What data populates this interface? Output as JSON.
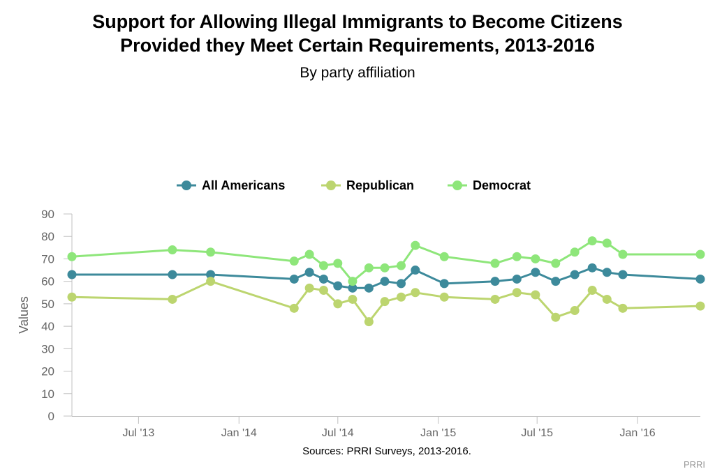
{
  "title_line1": "Support for Allowing Illegal Immigrants to Become Citizens",
  "title_line2": "Provided they Meet Certain Requirements, 2013-2016",
  "subtitle": "By party affiliation",
  "source": "Sources: PRRI Surveys, 2013-2016.",
  "credit": "PRRI",
  "colors": {
    "all_americans": "#3d8a9b",
    "republican": "#bcd56f",
    "democrat": "#8ee67a",
    "axis": "#c0c0c0",
    "tick_text": "#666666"
  },
  "chart_data": {
    "type": "line",
    "title": "Support for Allowing Illegal Immigrants to Become Citizens Provided they Meet Certain Requirements, 2013-2016",
    "subtitle": "By party affiliation",
    "xlabel": "",
    "ylabel": "Values",
    "ylim": [
      0,
      90
    ],
    "yticks": [
      0,
      10,
      20,
      30,
      40,
      50,
      60,
      70,
      80,
      90
    ],
    "xlim": [
      "2013-03-01",
      "2016-04-25"
    ],
    "xticks": [
      {
        "date": "2013-07-01",
        "label": "Jul '13"
      },
      {
        "date": "2014-01-01",
        "label": "Jan '14"
      },
      {
        "date": "2014-07-01",
        "label": "Jul '14"
      },
      {
        "date": "2015-01-01",
        "label": "Jan '15"
      },
      {
        "date": "2015-07-01",
        "label": "Jul '15"
      },
      {
        "date": "2016-01-01",
        "label": "Jan '16"
      }
    ],
    "legend_position": "top-center",
    "grid": false,
    "x": [
      "2013-03-01",
      "2013-09-01",
      "2013-11-10",
      "2014-04-12",
      "2014-05-10",
      "2014-06-05",
      "2014-07-01",
      "2014-07-28",
      "2014-08-27",
      "2014-09-25",
      "2014-10-25",
      "2014-11-20",
      "2015-01-12",
      "2015-04-15",
      "2015-05-25",
      "2015-06-28",
      "2015-08-04",
      "2015-09-08",
      "2015-10-10",
      "2015-11-06",
      "2015-12-05",
      "2016-04-25"
    ],
    "series": [
      {
        "name": "All Americans",
        "color": "#3d8a9b",
        "values": [
          63,
          63,
          63,
          61,
          64,
          61,
          58,
          57,
          57,
          60,
          59,
          65,
          59,
          60,
          61,
          64,
          60,
          63,
          66,
          64,
          63,
          61
        ]
      },
      {
        "name": "Republican",
        "color": "#bcd56f",
        "values": [
          53,
          52,
          60,
          48,
          57,
          56,
          50,
          52,
          42,
          51,
          53,
          55,
          53,
          52,
          55,
          54,
          44,
          47,
          56,
          52,
          48,
          49
        ]
      },
      {
        "name": "Democrat",
        "color": "#8ee67a",
        "values": [
          71,
          74,
          73,
          69,
          72,
          67,
          68,
          60,
          66,
          66,
          67,
          76,
          71,
          68,
          71,
          70,
          68,
          73,
          78,
          77,
          72,
          72
        ]
      }
    ]
  }
}
